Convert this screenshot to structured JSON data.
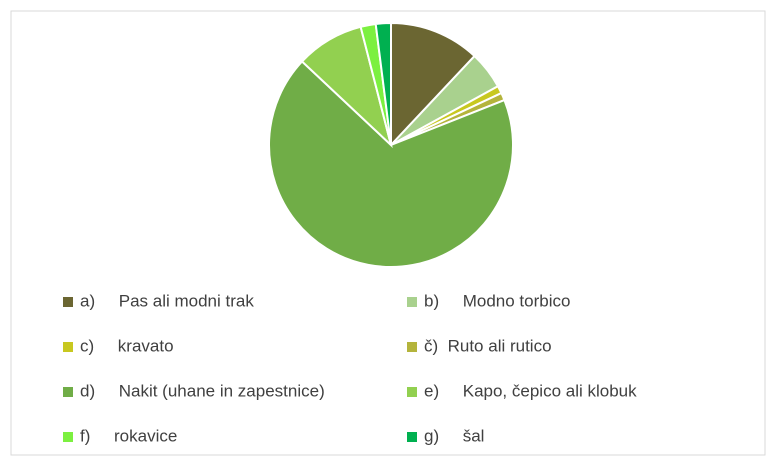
{
  "chart_data": {
    "type": "pie",
    "categories": [
      "a)     Pas ali modni trak",
      "b)     Modno torbico",
      "c)     kravato",
      "č)  Ruto ali rutico",
      "d)     Nakit (uhane in zapestnice)",
      "e)     Kapo, čepico ali klobuk",
      "f)     rokavice",
      "g)     šal"
    ],
    "values": [
      12,
      5,
      1,
      1,
      68,
      9,
      2,
      2
    ],
    "colors": [
      "#6b6632",
      "#a9d18e",
      "#c8c820",
      "#b4b43c",
      "#70ad47",
      "#92d050",
      "#7cf040",
      "#00b050"
    ],
    "legend": "bottom"
  }
}
